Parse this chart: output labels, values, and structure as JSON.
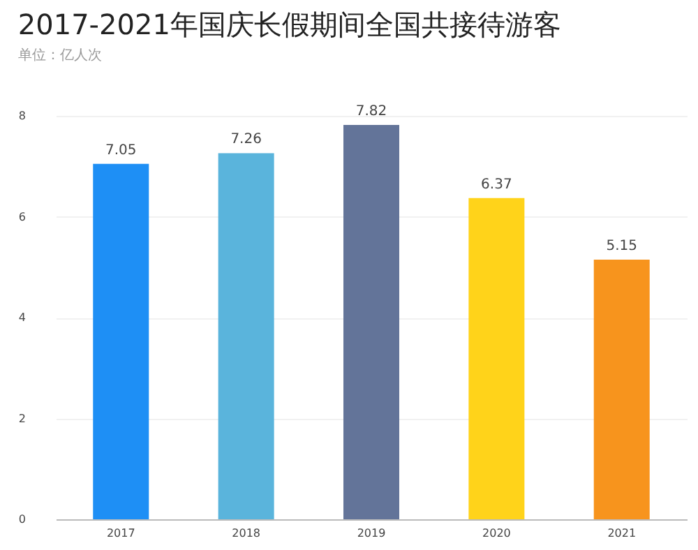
{
  "chart_data": {
    "type": "bar",
    "title": "2017-2021年国庆长假期间全国共接待游客",
    "subtitle": "单位：亿人次",
    "categories": [
      "2017",
      "2018",
      "2019",
      "2020",
      "2021"
    ],
    "values": [
      7.05,
      7.26,
      7.82,
      6.37,
      5.15
    ],
    "colors": [
      "#1e8ff5",
      "#5ab4dc",
      "#637499",
      "#ffd31a",
      "#f7941d"
    ],
    "ylim": [
      0,
      8
    ],
    "yticks": [
      0,
      2,
      4,
      6,
      8
    ],
    "grid": "y",
    "data_labels": true
  }
}
